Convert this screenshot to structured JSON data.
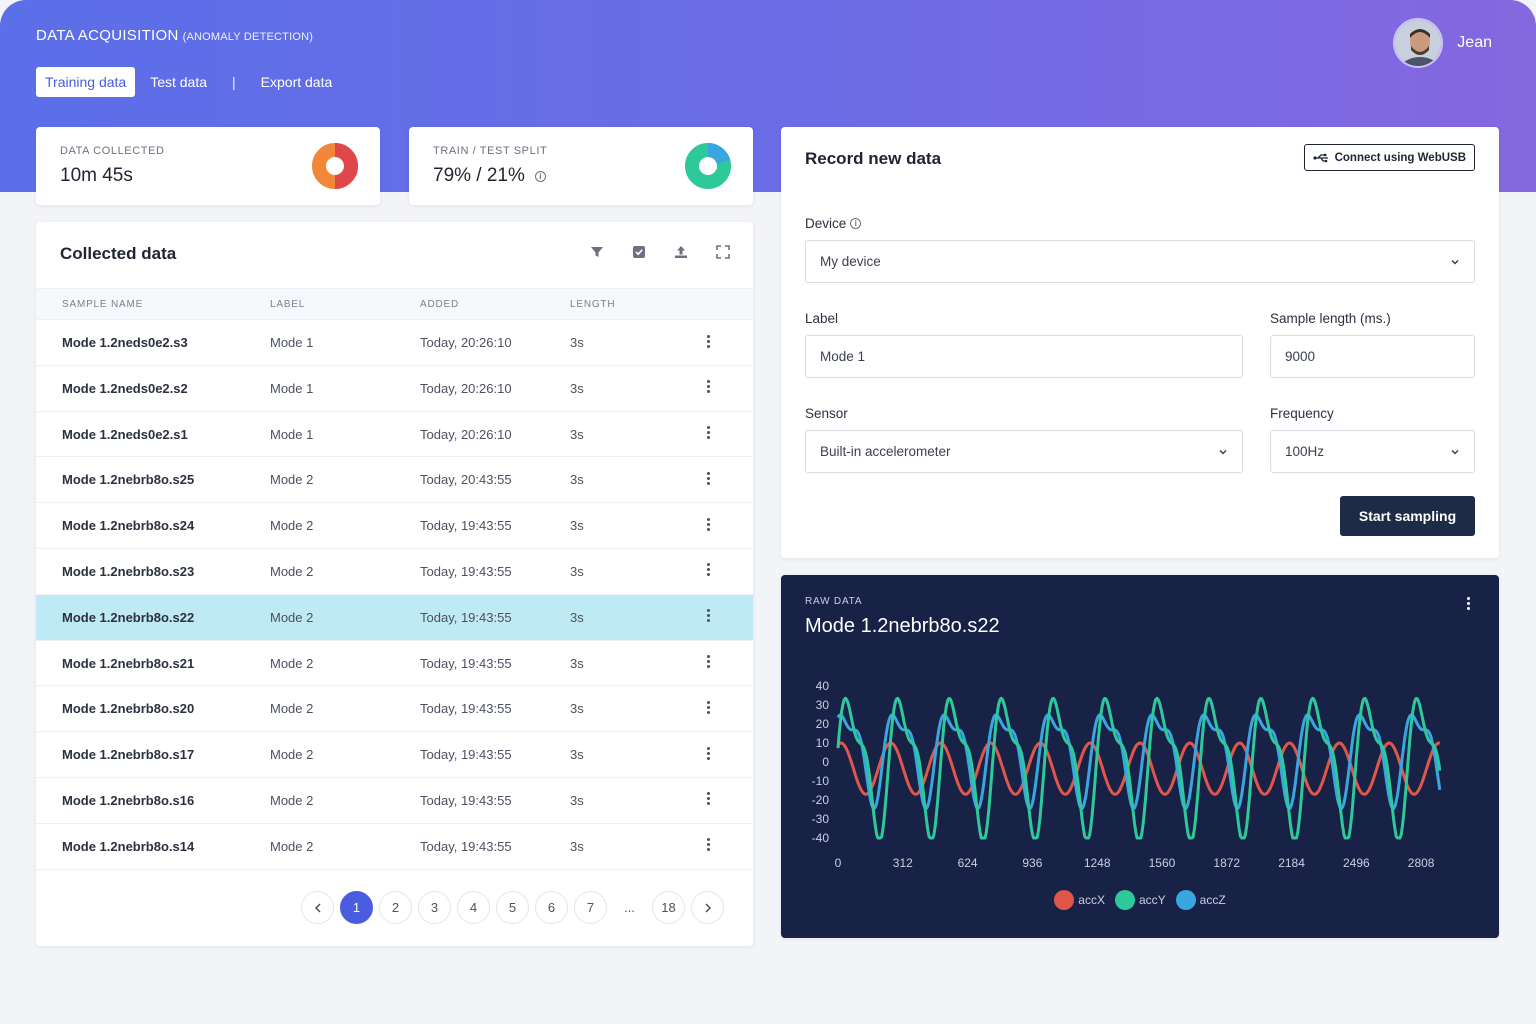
{
  "header": {
    "title": "DATA ACQUISITION",
    "subtitle": "(ANOMALY DETECTION)",
    "tabs": [
      {
        "label": "Training data",
        "active": true
      },
      {
        "label": "Test data",
        "active": false
      },
      {
        "label": "Export data",
        "active": false
      }
    ],
    "separator": "|",
    "user_name": "Jean"
  },
  "stats": {
    "data_collected": {
      "label": "DATA COLLECTED",
      "value": "10m 45s"
    },
    "split": {
      "label": "TRAIN / TEST SPLIT",
      "value": "79% / 21%",
      "train_fraction": 0.79
    }
  },
  "collected": {
    "title": "Collected data",
    "columns": [
      "SAMPLE NAME",
      "LABEL",
      "ADDED",
      "LENGTH"
    ],
    "rows": [
      {
        "name": "Mode 1.2neds0e2.s3",
        "label": "Mode 1",
        "added": "Today, 20:26:10",
        "length": "3s"
      },
      {
        "name": "Mode 1.2neds0e2.s2",
        "label": "Mode 1",
        "added": "Today, 20:26:10",
        "length": "3s"
      },
      {
        "name": "Mode 1.2neds0e2.s1",
        "label": "Mode 1",
        "added": "Today, 20:26:10",
        "length": "3s"
      },
      {
        "name": "Mode 1.2nebrb8o.s25",
        "label": "Mode 2",
        "added": "Today, 20:43:55",
        "length": "3s"
      },
      {
        "name": "Mode 1.2nebrb8o.s24",
        "label": "Mode 2",
        "added": "Today, 19:43:55",
        "length": "3s"
      },
      {
        "name": "Mode 1.2nebrb8o.s23",
        "label": "Mode 2",
        "added": "Today, 19:43:55",
        "length": "3s"
      },
      {
        "name": "Mode 1.2nebrb8o.s22",
        "label": "Mode 2",
        "added": "Today, 19:43:55",
        "length": "3s",
        "selected": true
      },
      {
        "name": "Mode 1.2nebrb8o.s21",
        "label": "Mode 2",
        "added": "Today, 19:43:55",
        "length": "3s"
      },
      {
        "name": "Mode 1.2nebrb8o.s20",
        "label": "Mode 2",
        "added": "Today, 19:43:55",
        "length": "3s"
      },
      {
        "name": "Mode 1.2nebrb8o.s17",
        "label": "Mode 2",
        "added": "Today, 19:43:55",
        "length": "3s"
      },
      {
        "name": "Mode 1.2nebrb8o.s16",
        "label": "Mode 2",
        "added": "Today, 19:43:55",
        "length": "3s"
      },
      {
        "name": "Mode 1.2nebrb8o.s14",
        "label": "Mode 2",
        "added": "Today, 19:43:55",
        "length": "3s"
      }
    ],
    "pagination": {
      "pages": [
        "1",
        "2",
        "3",
        "4",
        "5",
        "6",
        "7",
        "...",
        "18"
      ],
      "current": "1"
    }
  },
  "record": {
    "title": "Record new data",
    "connect_label": "Connect using WebUSB",
    "device_label": "Device",
    "device_value": "My device",
    "label_label": "Label",
    "label_value": "Mode 1",
    "sample_length_label": "Sample length (ms.)",
    "sample_length_value": "9000",
    "sensor_label": "Sensor",
    "sensor_value": "Built-in accelerometer",
    "frequency_label": "Frequency",
    "frequency_value": "100Hz",
    "start_label": "Start sampling"
  },
  "raw": {
    "subtitle": "RAW DATA",
    "title": "Mode 1.2nebrb8o.s22"
  },
  "colors": {
    "accent": "#4a5ce0",
    "accX": "#e0574a",
    "accY": "#2ec99a",
    "accZ": "#3aa6e0"
  },
  "chart_data": {
    "type": "line",
    "title": "",
    "xlabel": "",
    "ylabel": "",
    "xlim": [
      0,
      3000
    ],
    "ylim": [
      -40,
      40
    ],
    "x_ticks": [
      "0",
      "312",
      "624",
      "936",
      "1248",
      "1560",
      "1872",
      "2184",
      "2496",
      "2808"
    ],
    "y_ticks": [
      "40",
      "30",
      "20",
      "10",
      "0",
      "-10",
      "-20",
      "-30",
      "-40"
    ],
    "grid": false,
    "legend": "bottom-center",
    "series": [
      {
        "name": "accX",
        "color": "#e0574a",
        "approx_range": [
          -17,
          10
        ],
        "approx_period": 240
      },
      {
        "name": "accY",
        "color": "#2ec99a",
        "approx_range": [
          -39,
          39
        ],
        "approx_period": 250
      },
      {
        "name": "accZ",
        "color": "#3aa6e0",
        "approx_range": [
          -22,
          33
        ],
        "approx_period": 250
      }
    ]
  }
}
